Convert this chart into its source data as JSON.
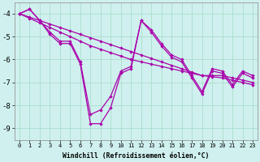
{
  "xlabel": "Windchill (Refroidissement éolien,°C)",
  "background_color": "#cff0ee",
  "line_color": "#aa00aa",
  "grid_color": "#aaddcc",
  "hours": [
    0,
    1,
    2,
    3,
    4,
    5,
    6,
    7,
    8,
    9,
    10,
    11,
    12,
    13,
    14,
    15,
    16,
    17,
    18,
    19,
    20,
    21,
    22,
    23
  ],
  "line1": [
    -4.0,
    -3.8,
    -4.3,
    -4.8,
    -5.2,
    -5.2,
    -6.1,
    -8.4,
    -8.2,
    -7.6,
    -6.5,
    -6.3,
    -4.3,
    -4.7,
    -5.3,
    -5.8,
    -6.0,
    -6.7,
    -7.4,
    -6.4,
    -6.5,
    -7.1,
    -6.5,
    -6.7
  ],
  "line2": [
    -4.0,
    -3.8,
    -4.3,
    -4.9,
    -5.3,
    -5.3,
    -6.2,
    -8.8,
    -8.8,
    -8.1,
    -6.6,
    -6.4,
    -4.3,
    -4.8,
    -5.4,
    -5.9,
    -6.1,
    -6.8,
    -7.5,
    -6.5,
    -6.6,
    -7.2,
    -6.6,
    -6.8
  ],
  "trend1": [
    -4.0,
    -4.15,
    -4.3,
    -4.45,
    -4.6,
    -4.75,
    -4.9,
    -5.05,
    -5.2,
    -5.35,
    -5.5,
    -5.65,
    -5.8,
    -5.95,
    -6.1,
    -6.25,
    -6.4,
    -6.55,
    -6.7,
    -6.7,
    -6.7,
    -6.8,
    -6.9,
    -7.0
  ],
  "trend2": [
    -4.0,
    -4.2,
    -4.4,
    -4.6,
    -4.8,
    -5.0,
    -5.2,
    -5.4,
    -5.55,
    -5.7,
    -5.85,
    -6.0,
    -6.1,
    -6.2,
    -6.3,
    -6.4,
    -6.5,
    -6.6,
    -6.7,
    -6.75,
    -6.8,
    -6.9,
    -7.0,
    -7.1
  ],
  "ylim": [
    -9.5,
    -3.5
  ],
  "yticks": [
    -4,
    -5,
    -6,
    -7,
    -8,
    -9
  ],
  "xlim": [
    -0.5,
    23.5
  ]
}
